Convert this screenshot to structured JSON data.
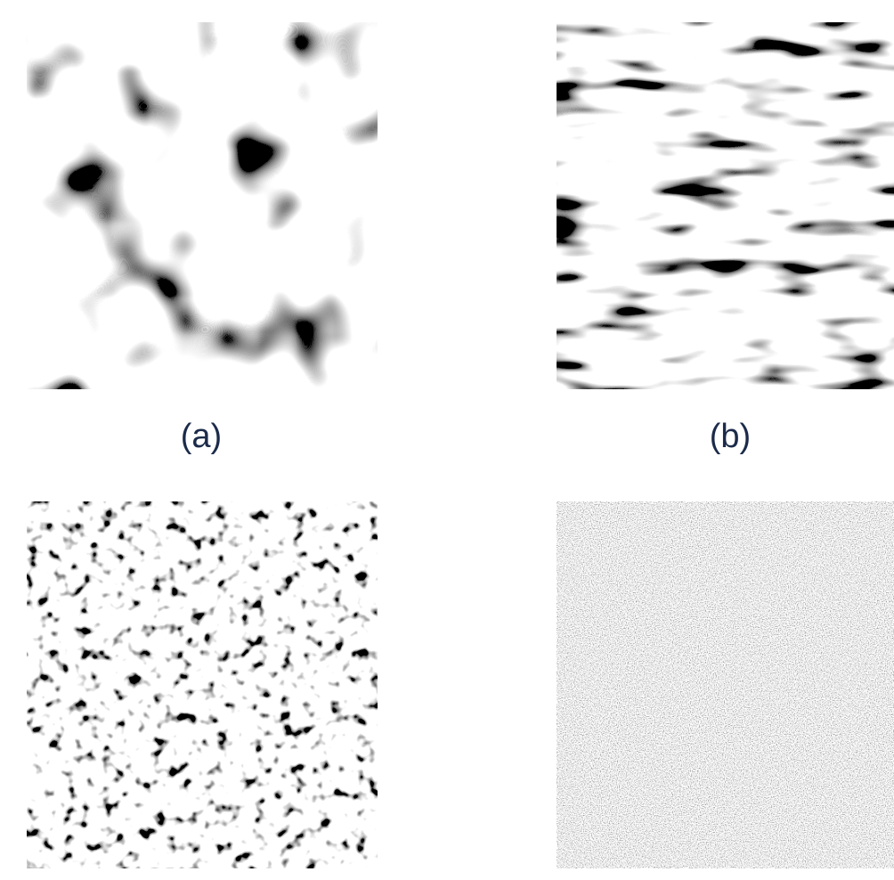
{
  "panels": {
    "a": {
      "label": "(a)"
    },
    "b": {
      "label": "(b)"
    }
  }
}
